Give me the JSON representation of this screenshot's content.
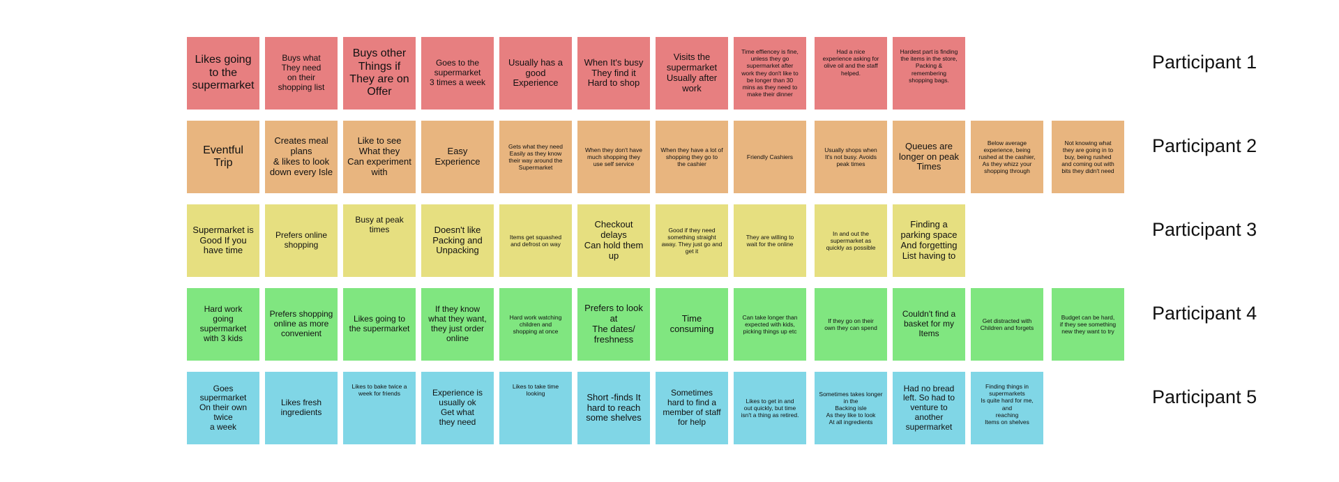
{
  "rows": [
    {
      "label": "Participant 1",
      "color": "#e77f80",
      "notes": [
        "Likes going\nto the\nsupermarket",
        "Buys what\nThey need\non their\nshopping list",
        "Buys other\nThings if\nThey are on\nOffer",
        "Goes to the\nsupermarket\n3 times a week",
        "Usually has a\ngood\nExperience",
        "When It's busy\nThey find it\nHard to shop",
        "Visits the\nsupermarket\nUsually after\nwork",
        "Time effiencey is fine,\nunless they go\nsupermarket after\nwork they don't like to\nbe longer than 30\nmins as they need to\nmake their dinner",
        "Had a nice\nexperience asking for\nolive oil and the staff\nhelped.",
        "Hardest part is finding\nthe items in the store,\nPacking &\nremembering\nshopping bags."
      ]
    },
    {
      "label": "Participant 2",
      "color": "#e8b57f",
      "notes": [
        "Eventful\nTrip",
        "Creates meal\nplans\n& likes to look\ndown every Isle",
        "Like to see\nWhat they\nCan experiment\nwith",
        "Easy\nExperience",
        "Gets what they need\nEasily as they know\ntheir way around the\nSupermarket",
        "When they don't have\nmuch shopping they\nuse self service",
        "When they have a lot of\nshopping they go to\nthe cashier",
        "Friendly Cashiers",
        "Usually shops when\nIt's not busy. Avoids\npeak times",
        "Queues are\nlonger on peak\nTimes",
        "Below average\nexperience, being\nrushed at the cashier,\nAs they whizz your\nshopping through",
        "Not knowing what\nthey are going in to\nbuy, being rushed\nand coming out with\nbits they didn't need"
      ]
    },
    {
      "label": "Participant 3",
      "color": "#e6df80",
      "notes": [
        "Supermarket is\nGood If you\nhave time",
        "Prefers online\nshopping",
        "Busy at peak\ntimes",
        "Doesn't like\nPacking and\nUnpacking",
        "Items get squashed\nand defrost on way",
        "Checkout delays\nCan hold them up",
        "Good if they need\nsomething straight\naway. They just go and\nget it",
        "They are willing to\nwait for the online",
        "In and out the\nsupermarket as\nquickly as possible",
        "Finding a\nparking space\nAnd forgetting\nList having to"
      ]
    },
    {
      "label": "Participant 4",
      "color": "#80e680",
      "notes": [
        "Hard work\ngoing\nsupermarket\nwith 3 kids",
        "Prefers shopping\nonline as more\nconvenient",
        "Likes going to\nthe supermarket",
        "If they know\nwhat they want,\nthey just order\nonline",
        "Hard work watching\nchildren and\nshopping at once",
        "Prefers to look\nat\nThe dates/\nfreshness",
        "Time\nconsuming",
        "Can take longer than\nexpected with kids,\npicking things up etc",
        "If they go on their\nown they can spend",
        "Couldn't find a\nbasket for my\nItems",
        "Get distracted with\nChildren and forgets",
        "Budget can be hard,\nif they see something\nnew they want to try"
      ]
    },
    {
      "label": "Participant 5",
      "color": "#80d6e6",
      "notes": [
        "Goes supermarket\nOn their own twice\na week",
        "Likes fresh\ningredients",
        "Likes to bake twice a\nweek for friends",
        "Experience is\nusually ok\nGet what\nthey need",
        "Likes to take time\nlooking",
        "Short -finds It\nhard to reach\nsome shelves",
        "Sometimes\nhard to find a\nmember of staff\nfor help",
        "Likes to get in and\nout quickly, but time\nisn't a thing as retired.",
        "Sometimes takes longer in the\nBacking isle\nAs they like to look\nAt all ingredients",
        "Had no bread\nleft. So had to\nventure to\nanother\nsupermarket",
        "Finding things in\nsupermarkets\nIs quite hard for me, and\nreaching\nItems on shelves"
      ]
    }
  ]
}
